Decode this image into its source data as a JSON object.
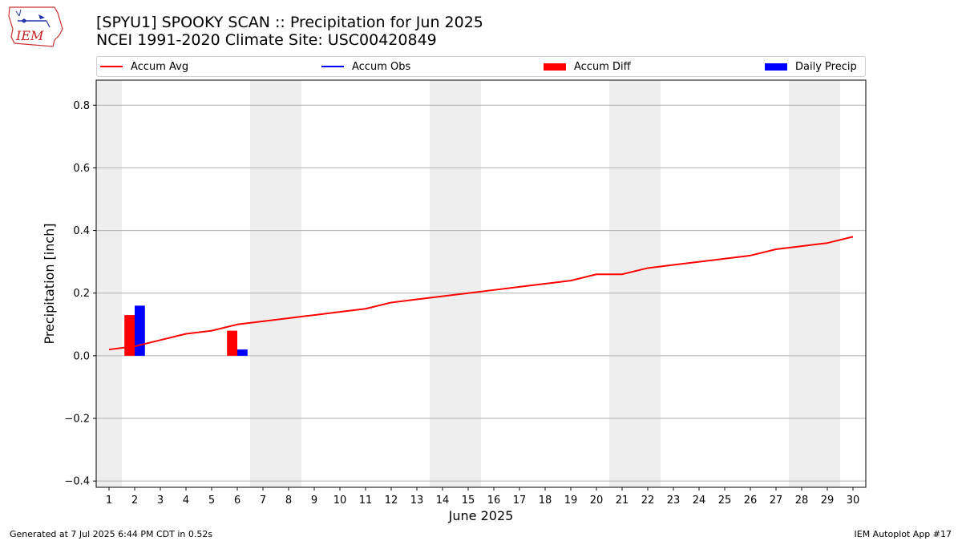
{
  "header": {
    "title_line1": "[SPYU1] SPOOKY SCAN :: Precipitation for Jun 2025",
    "title_line2": "NCEI 1991-2020 Climate Site: USC00420849",
    "logo_text": "IEM"
  },
  "legend": {
    "items": [
      {
        "label": "Accum Avg",
        "color": "#ff0000",
        "kind": "line"
      },
      {
        "label": "Accum Obs",
        "color": "#0000ff",
        "kind": "line"
      },
      {
        "label": "Accum Diff",
        "color": "#ff0000",
        "kind": "box"
      },
      {
        "label": "Daily Precip",
        "color": "#0000ff",
        "kind": "box"
      }
    ]
  },
  "footer": {
    "left": "Generated at 7 Jul 2025 6:44 PM CDT in 0.52s",
    "right": "IEM Autoplot App #17"
  },
  "chart_data": {
    "type": "bar+line",
    "xlabel": "June 2025",
    "ylabel": "Precipitation [inch]",
    "xlim": [
      0.5,
      30.5
    ],
    "ylim": [
      -0.42,
      0.88
    ],
    "yticks": [
      -0.4,
      -0.2,
      0.0,
      0.2,
      0.4,
      0.6,
      0.8
    ],
    "ytick_labels": [
      "−0.4",
      "−0.2",
      "0.0",
      "0.2",
      "0.4",
      "0.6",
      "0.8"
    ],
    "xticks": [
      1,
      2,
      3,
      4,
      5,
      6,
      7,
      8,
      9,
      10,
      11,
      12,
      13,
      14,
      15,
      16,
      17,
      18,
      19,
      20,
      21,
      22,
      23,
      24,
      25,
      26,
      27,
      28,
      29,
      30
    ],
    "grid": "horizontal",
    "weekend_shading": [
      [
        0.5,
        1.5
      ],
      [
        6.5,
        8.5
      ],
      [
        13.5,
        15.5
      ],
      [
        20.5,
        22.5
      ],
      [
        27.5,
        29.5
      ]
    ],
    "accum_avg": {
      "name": "Accum Avg",
      "color": "#ff0000",
      "x": [
        1,
        2,
        3,
        4,
        5,
        6,
        7,
        8,
        9,
        10,
        11,
        12,
        13,
        14,
        15,
        16,
        17,
        18,
        19,
        20,
        21,
        22,
        23,
        24,
        25,
        26,
        27,
        28,
        29,
        30
      ],
      "values": [
        0.02,
        0.03,
        0.05,
        0.07,
        0.08,
        0.1,
        0.11,
        0.12,
        0.13,
        0.14,
        0.15,
        0.17,
        0.18,
        0.19,
        0.2,
        0.21,
        0.22,
        0.23,
        0.24,
        0.26,
        0.26,
        0.28,
        0.29,
        0.3,
        0.31,
        0.32,
        0.34,
        0.35,
        0.36,
        0.38
      ]
    },
    "accum_diff": {
      "name": "Accum Diff",
      "color": "#ff0000",
      "x": [
        2,
        6
      ],
      "values": [
        0.13,
        0.08
      ]
    },
    "daily_precip": {
      "name": "Daily Precip",
      "color": "#0000ff",
      "x": [
        2,
        6
      ],
      "values": [
        0.16,
        0.02
      ]
    }
  }
}
